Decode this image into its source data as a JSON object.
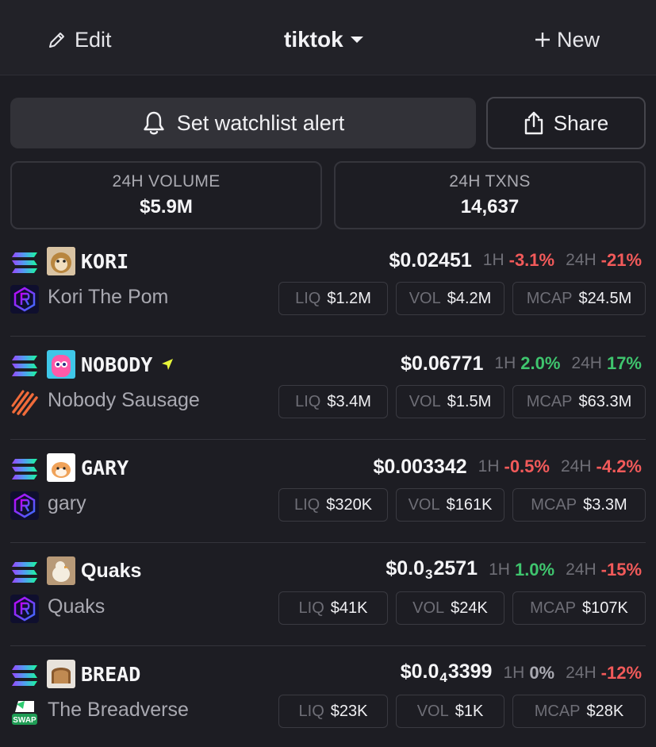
{
  "header": {
    "edit_label": "Edit",
    "watchlist_name": "tiktok",
    "new_label": "New"
  },
  "actions": {
    "alert_label": "Set watchlist alert",
    "share_label": "Share"
  },
  "stats": {
    "volume_label": "24H VOLUME",
    "volume_value": "$5.9M",
    "txns_label": "24H TXNS",
    "txns_value": "14,637"
  },
  "tokens": [
    {
      "symbol": "KORI",
      "name": "Kori The Pom",
      "price": "$0.02451",
      "price_sub": "",
      "price_rest": "",
      "h1_label": "1H",
      "h1": "-3.1%",
      "h24_label": "24H",
      "h24": "-21%",
      "liq_label": "LIQ",
      "liq": "$1.2M",
      "vol_label": "VOL",
      "vol": "$4.2M",
      "mcap_label": "MCAP",
      "mcap": "$24.5M"
    },
    {
      "symbol": "NOBODY",
      "name": "Nobody Sausage",
      "price": "$0.06771",
      "price_sub": "",
      "price_rest": "",
      "h1_label": "1H",
      "h1": "2.0%",
      "h24_label": "24H",
      "h24": "17%",
      "liq_label": "LIQ",
      "liq": "$3.4M",
      "vol_label": "VOL",
      "vol": "$1.5M",
      "mcap_label": "MCAP",
      "mcap": "$63.3M"
    },
    {
      "symbol": "GARY",
      "name": "gary",
      "price": "$0.003342",
      "price_sub": "",
      "price_rest": "",
      "h1_label": "1H",
      "h1": "-0.5%",
      "h24_label": "24H",
      "h24": "-4.2%",
      "liq_label": "LIQ",
      "liq": "$320K",
      "vol_label": "VOL",
      "vol": "$161K",
      "mcap_label": "MCAP",
      "mcap": "$3.3M"
    },
    {
      "symbol": "Quaks",
      "name": "Quaks",
      "price": "$0.0",
      "price_sub": "3",
      "price_rest": "2571",
      "h1_label": "1H",
      "h1": "1.0%",
      "h24_label": "24H",
      "h24": "-15%",
      "liq_label": "LIQ",
      "liq": "$41K",
      "vol_label": "VOL",
      "vol": "$24K",
      "mcap_label": "MCAP",
      "mcap": "$107K"
    },
    {
      "symbol": "BREAD",
      "name": "The Breadverse",
      "price": "$0.0",
      "price_sub": "4",
      "price_rest": "3399",
      "h1_label": "1H",
      "h1": "0%",
      "h24_label": "24H",
      "h24": "-12%",
      "liq_label": "LIQ",
      "liq": "$23K",
      "vol_label": "VOL",
      "vol": "$1K",
      "mcap_label": "MCAP",
      "mcap": "$28K"
    }
  ],
  "icons": {
    "dex_logos": [
      "raydium-icon",
      "sausage-dex-icon",
      "raydium-icon",
      "raydium-icon",
      "swap-icon"
    ],
    "chain": "solana-icon"
  },
  "colors": {
    "negative": "#f25a5a",
    "positive": "#3fc56e",
    "neutral": "#a9a9b1",
    "background": "#1d1d23"
  }
}
